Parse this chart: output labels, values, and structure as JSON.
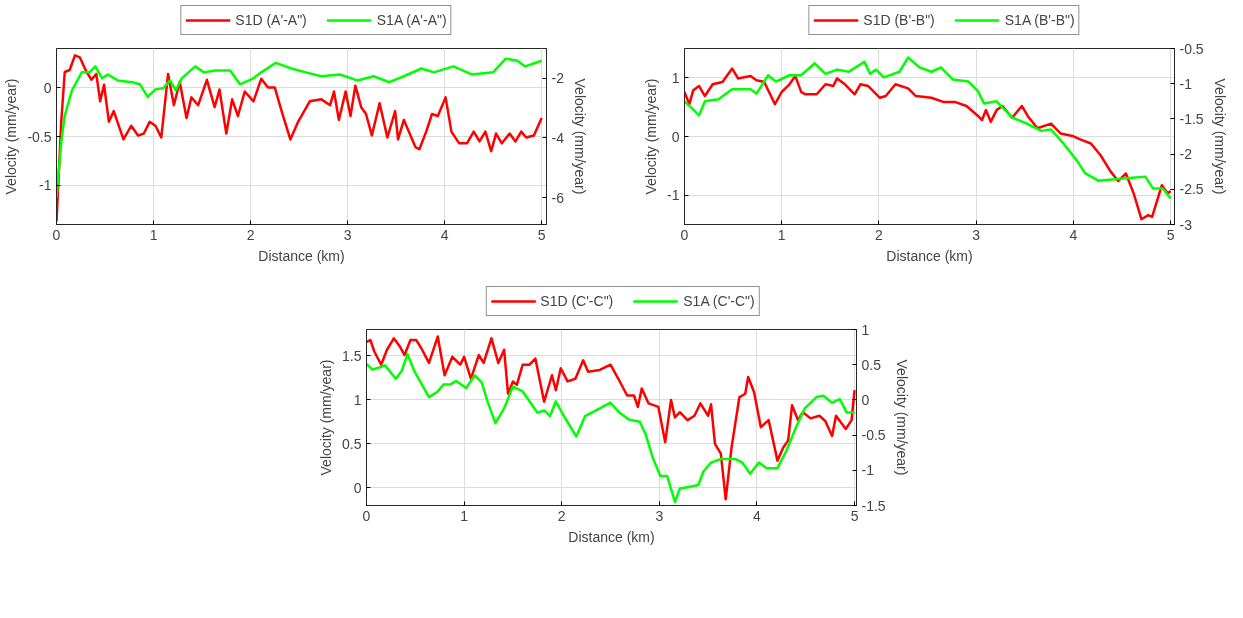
{
  "chart_data": [
    {
      "type": "line",
      "xlabel": "Distance (km)",
      "ylabel": "Velocity (mm/year)",
      "y2label": "Velocity (mm/year)",
      "xlim": [
        0,
        5.05
      ],
      "xticks": [
        0,
        1,
        2,
        3,
        4,
        5
      ],
      "ylim": [
        -1.4,
        0.4
      ],
      "yticks": [
        -1,
        -0.5,
        0
      ],
      "y2lim": [
        -6.9,
        -1
      ],
      "y2ticks": [
        -6,
        -4,
        -2
      ],
      "grid": true,
      "legend": "top",
      "series": [
        {
          "name": "S1D (A'-A\")",
          "color": "#ff0000",
          "x": [
            0,
            0.05,
            0.085,
            0.136,
            0.19,
            0.24,
            0.3,
            0.36,
            0.41,
            0.45,
            0.49,
            0.54,
            0.59,
            0.69,
            0.77,
            0.84,
            0.9,
            0.96,
            1.02,
            1.08,
            1.15,
            1.21,
            1.27,
            1.34,
            1.39,
            1.46,
            1.55,
            1.63,
            1.68,
            1.75,
            1.81,
            1.87,
            1.94,
            2.03,
            2.11,
            2.18,
            2.25,
            2.32,
            2.41,
            2.49,
            2.61,
            2.73,
            2.82,
            2.86,
            2.91,
            2.98,
            3.03,
            3.08,
            3.14,
            3.19,
            3.25,
            3.33,
            3.41,
            3.49,
            3.52,
            3.58,
            3.7,
            3.74,
            3.81,
            3.87,
            3.93,
            4.01,
            4.07,
            4.15,
            4.23,
            4.3,
            4.36,
            4.42,
            4.48,
            4.53,
            4.59,
            4.67,
            4.73,
            4.79,
            4.84,
            4.92,
            5
          ],
          "values": [
            -1.37,
            -0.33,
            0.16,
            0.18,
            0.33,
            0.31,
            0.18,
            0.08,
            0.14,
            -0.14,
            0.03,
            -0.35,
            -0.24,
            -0.53,
            -0.39,
            -0.49,
            -0.47,
            -0.35,
            -0.39,
            -0.51,
            0.14,
            -0.18,
            0.06,
            -0.31,
            -0.1,
            -0.18,
            0.08,
            -0.2,
            -0.02,
            -0.47,
            -0.12,
            -0.29,
            -0.04,
            -0.14,
            0.09,
            0,
            0,
            -0.24,
            -0.53,
            -0.35,
            -0.14,
            -0.12,
            -0.18,
            -0.04,
            -0.33,
            -0.04,
            -0.29,
            0.02,
            -0.2,
            -0.27,
            -0.49,
            -0.16,
            -0.51,
            -0.24,
            -0.53,
            -0.33,
            -0.61,
            -0.63,
            -0.45,
            -0.27,
            -0.29,
            -0.1,
            -0.45,
            -0.57,
            -0.57,
            -0.45,
            -0.55,
            -0.45,
            -0.65,
            -0.47,
            -0.57,
            -0.47,
            -0.55,
            -0.45,
            -0.51,
            -0.49,
            -0.31
          ]
        },
        {
          "name": "S1A (A'-A\")",
          "color": "#00ff00",
          "axis": "y2",
          "x": [
            0,
            0.05,
            0.085,
            0.16,
            0.26,
            0.34,
            0.4,
            0.47,
            0.53,
            0.63,
            0.78,
            0.86,
            0.94,
            1.02,
            1.1,
            1.17,
            1.23,
            1.29,
            1.43,
            1.52,
            1.64,
            1.79,
            1.89,
            2.03,
            2.11,
            2.26,
            2.42,
            2.57,
            2.73,
            2.92,
            3.1,
            3.27,
            3.43,
            3.58,
            3.76,
            3.89,
            4.09,
            4.28,
            4.5,
            4.63,
            4.75,
            4.83,
            5
          ],
          "values": [
            -6.0,
            -4.1,
            -3.25,
            -2.4,
            -1.8,
            -1.8,
            -1.6,
            -2.0,
            -1.87,
            -2.07,
            -2.13,
            -2.2,
            -2.62,
            -2.37,
            -2.33,
            -2.07,
            -2.4,
            -2.0,
            -1.6,
            -1.8,
            -1.74,
            -1.74,
            -2.2,
            -2.0,
            -1.8,
            -1.48,
            -1.67,
            -1.8,
            -1.93,
            -1.87,
            -2.07,
            -1.93,
            -2.13,
            -1.93,
            -1.67,
            -1.8,
            -1.6,
            -1.87,
            -1.8,
            -1.34,
            -1.41,
            -1.6,
            -1.41
          ]
        }
      ]
    },
    {
      "type": "line",
      "xlabel": "Distance (km)",
      "ylabel": "Velocity (mm/year)",
      "y2label": "Velocity (mm/year)",
      "xlim": [
        0,
        5.04
      ],
      "xticks": [
        0,
        1,
        2,
        3,
        4,
        5
      ],
      "ylim": [
        -1.5,
        1.5
      ],
      "yticks": [
        -1,
        0,
        1
      ],
      "y2lim": [
        -3,
        -0.5
      ],
      "y2ticks": [
        -3,
        -2.5,
        -2,
        -1.5,
        -1,
        -0.5
      ],
      "grid": true,
      "legend": "top",
      "series": [
        {
          "name": "S1D (B'-B\")",
          "color": "#ff0000",
          "x": [
            0,
            0.05,
            0.09,
            0.15,
            0.21,
            0.29,
            0.39,
            0.49,
            0.55,
            0.68,
            0.74,
            0.82,
            0.93,
            1.0,
            1.08,
            1.14,
            1.2,
            1.24,
            1.36,
            1.45,
            1.53,
            1.57,
            1.65,
            1.75,
            1.81,
            1.89,
            2.01,
            2.07,
            2.17,
            2.3,
            2.38,
            2.54,
            2.66,
            2.78,
            2.9,
            3.02,
            3.06,
            3.1,
            3.15,
            3.21,
            3.27,
            3.37,
            3.47,
            3.53,
            3.63,
            3.77,
            3.87,
            3.99,
            4.07,
            4.18,
            4.28,
            4.38,
            4.46,
            4.54,
            4.62,
            4.7,
            4.77,
            4.81,
            4.91,
            4.97,
            5
          ],
          "values": [
            0.76,
            0.55,
            0.79,
            0.86,
            0.69,
            0.89,
            0.93,
            1.16,
            0.99,
            1.03,
            0.96,
            0.93,
            0.55,
            0.76,
            0.89,
            1.03,
            0.76,
            0.72,
            0.72,
            0.89,
            0.86,
            0.99,
            0.89,
            0.72,
            0.89,
            0.86,
            0.66,
            0.69,
            0.89,
            0.82,
            0.69,
            0.66,
            0.59,
            0.59,
            0.52,
            0.35,
            0.28,
            0.45,
            0.25,
            0.45,
            0.52,
            0.32,
            0.52,
            0.35,
            0.14,
            0.22,
            0.05,
            0.01,
            -0.05,
            -0.12,
            -0.32,
            -0.59,
            -0.76,
            -0.63,
            -0.97,
            -1.41,
            -1.34,
            -1.37,
            -0.83,
            -0.97,
            -0.93
          ]
        },
        {
          "name": "S1A (B'-B\")",
          "color": "#00ff00",
          "axis": "y2",
          "x": [
            0,
            0.07,
            0.15,
            0.21,
            0.35,
            0.49,
            0.57,
            0.68,
            0.74,
            0.86,
            0.94,
            1.08,
            1.2,
            1.34,
            1.45,
            1.57,
            1.69,
            1.85,
            1.91,
            1.97,
            2.05,
            2.21,
            2.3,
            2.42,
            2.54,
            2.64,
            2.76,
            2.92,
            3.02,
            3.08,
            3.21,
            3.37,
            3.51,
            3.67,
            3.77,
            3.91,
            4.04,
            4.12,
            4.26,
            4.48,
            4.74,
            4.82,
            4.92,
            5
          ],
          "values": [
            -1.25,
            -1.34,
            -1.45,
            -1.25,
            -1.22,
            -1.08,
            -1.08,
            -1.08,
            -1.14,
            -0.88,
            -0.97,
            -0.88,
            -0.88,
            -0.71,
            -0.86,
            -0.8,
            -0.83,
            -0.69,
            -0.86,
            -0.8,
            -0.91,
            -0.83,
            -0.63,
            -0.77,
            -0.83,
            -0.77,
            -0.94,
            -0.97,
            -1.11,
            -1.28,
            -1.25,
            -1.48,
            -1.56,
            -1.67,
            -1.65,
            -1.87,
            -2.1,
            -2.27,
            -2.38,
            -2.35,
            -2.32,
            -2.49,
            -2.49,
            -2.63
          ]
        }
      ]
    },
    {
      "type": "line",
      "xlabel": "Distance (km)",
      "ylabel": "Velocity (mm/year)",
      "y2label": "Velocity (mm/year)",
      "xlim": [
        0,
        5.02
      ],
      "xticks": [
        0,
        1,
        2,
        3,
        4,
        5
      ],
      "ylim": [
        -0.2,
        1.8
      ],
      "yticks": [
        0,
        0.5,
        1,
        1.5
      ],
      "y2lim": [
        -1.5,
        1
      ],
      "y2ticks": [
        -1.5,
        -1,
        -0.5,
        0,
        0.5,
        1
      ],
      "grid": true,
      "legend": "top",
      "series": [
        {
          "name": "S1D (C'-C\")",
          "color": "#ff0000",
          "x": [
            0,
            0.04,
            0.08,
            0.15,
            0.21,
            0.28,
            0.34,
            0.39,
            0.45,
            0.51,
            0.56,
            0.64,
            0.73,
            0.8,
            0.88,
            0.96,
            1.0,
            1.07,
            1.15,
            1.2,
            1.28,
            1.35,
            1.41,
            1.45,
            1.5,
            1.54,
            1.6,
            1.67,
            1.73,
            1.82,
            1.9,
            1.94,
            1.99,
            2.06,
            2.14,
            2.22,
            2.27,
            2.39,
            2.5,
            2.58,
            2.67,
            2.74,
            2.78,
            2.82,
            2.89,
            2.99,
            3.06,
            3.12,
            3.16,
            3.21,
            3.29,
            3.36,
            3.42,
            3.5,
            3.53,
            3.57,
            3.63,
            3.68,
            3.74,
            3.82,
            3.88,
            3.91,
            3.97,
            4.04,
            4.12,
            4.21,
            4.27,
            4.32,
            4.36,
            4.42,
            4.47,
            4.55,
            4.64,
            4.7,
            4.77,
            4.81,
            4.91,
            4.97,
            5
          ],
          "values": [
            1.66,
            1.68,
            1.55,
            1.4,
            1.57,
            1.7,
            1.61,
            1.51,
            1.68,
            1.68,
            1.59,
            1.42,
            1.72,
            1.28,
            1.49,
            1.4,
            1.49,
            1.24,
            1.51,
            1.42,
            1.7,
            1.42,
            1.57,
            1.07,
            1.21,
            1.17,
            1.4,
            1.4,
            1.47,
            0.98,
            1.28,
            1.11,
            1.36,
            1.21,
            1.24,
            1.45,
            1.32,
            1.34,
            1.4,
            1.24,
            1.05,
            1.05,
            0.92,
            1.13,
            0.96,
            0.92,
            0.52,
            1.0,
            0.8,
            0.86,
            0.77,
            0.82,
            0.96,
            0.82,
            0.95,
            0.5,
            0.39,
            -0.13,
            0.46,
            1.03,
            1.07,
            1.26,
            1.09,
            0.69,
            0.77,
            0.31,
            0.46,
            0.54,
            0.94,
            0.77,
            0.86,
            0.79,
            0.82,
            0.76,
            0.59,
            0.82,
            0.67,
            0.77,
            1.11
          ]
        },
        {
          "name": "S1A (C'-C\")",
          "color": "#00ff00",
          "axis": "y2",
          "x": [
            0,
            0.06,
            0.13,
            0.19,
            0.3,
            0.36,
            0.42,
            0.49,
            0.64,
            0.73,
            0.79,
            0.86,
            0.92,
            1.02,
            1.11,
            1.18,
            1.24,
            1.32,
            1.41,
            1.5,
            1.6,
            1.75,
            1.82,
            1.88,
            1.94,
            2.01,
            2.15,
            2.24,
            2.39,
            2.5,
            2.59,
            2.69,
            2.8,
            2.86,
            2.93,
            3.01,
            3.08,
            3.16,
            3.21,
            3.29,
            3.4,
            3.45,
            3.53,
            3.63,
            3.78,
            3.85,
            3.93,
            4.02,
            4.1,
            4.21,
            4.3,
            4.4,
            4.49,
            4.61,
            4.68,
            4.77,
            4.85,
            4.92,
            5
          ],
          "values": [
            0.51,
            0.43,
            0.46,
            0.49,
            0.3,
            0.41,
            0.65,
            0.41,
            0.04,
            0.12,
            0.22,
            0.22,
            0.27,
            0.17,
            0.35,
            0.25,
            -0.02,
            -0.33,
            -0.12,
            0.19,
            0.12,
            -0.18,
            -0.15,
            -0.23,
            -0.02,
            -0.2,
            -0.52,
            -0.23,
            -0.12,
            -0.04,
            -0.18,
            -0.28,
            -0.31,
            -0.49,
            -0.81,
            -1.08,
            -1.08,
            -1.45,
            -1.26,
            -1.24,
            -1.21,
            -1.02,
            -0.89,
            -0.84,
            -0.84,
            -0.89,
            -1.05,
            -0.89,
            -0.97,
            -0.97,
            -0.73,
            -0.39,
            -0.12,
            0.04,
            0.06,
            -0.04,
            0.01,
            -0.18,
            -0.18
          ]
        }
      ]
    }
  ]
}
